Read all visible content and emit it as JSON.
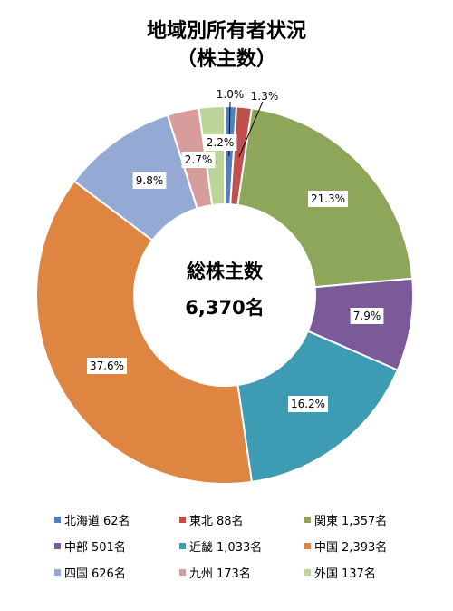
{
  "chart_data": {
    "type": "donut",
    "title_line1": "地域別所有者状況",
    "title_line2": "（株主数）",
    "center_line1": "総株主数",
    "center_line2": "6,370名",
    "slices": [
      {
        "name": "北海道",
        "count": "62名",
        "value": 1.0,
        "label": "1.0%",
        "color": "#4F81BD"
      },
      {
        "name": "東北",
        "count": "88名",
        "value": 1.3,
        "label": "1.3%",
        "color": "#C0504D"
      },
      {
        "name": "関東",
        "count": "1,357名",
        "value": 21.3,
        "label": "21.3%",
        "color": "#8DA65A"
      },
      {
        "name": "中部",
        "count": "501名",
        "value": 7.9,
        "label": "7.9%",
        "color": "#7B5A99"
      },
      {
        "name": "近畿",
        "count": "1,033名",
        "value": 16.2,
        "label": "16.2%",
        "color": "#3E9BB4"
      },
      {
        "name": "中国",
        "count": "2,393名",
        "value": 37.6,
        "label": "37.6%",
        "color": "#DE8542"
      },
      {
        "name": "四国",
        "count": "626名",
        "value": 9.8,
        "label": "9.8%",
        "color": "#94AAD4"
      },
      {
        "name": "九州",
        "count": "173名",
        "value": 2.7,
        "label": "2.7%",
        "color": "#D79D9B"
      },
      {
        "name": "外国",
        "count": "137名",
        "value": 2.2,
        "label": "2.2%",
        "color": "#BBD498"
      }
    ],
    "legend_placement": "bottom"
  }
}
